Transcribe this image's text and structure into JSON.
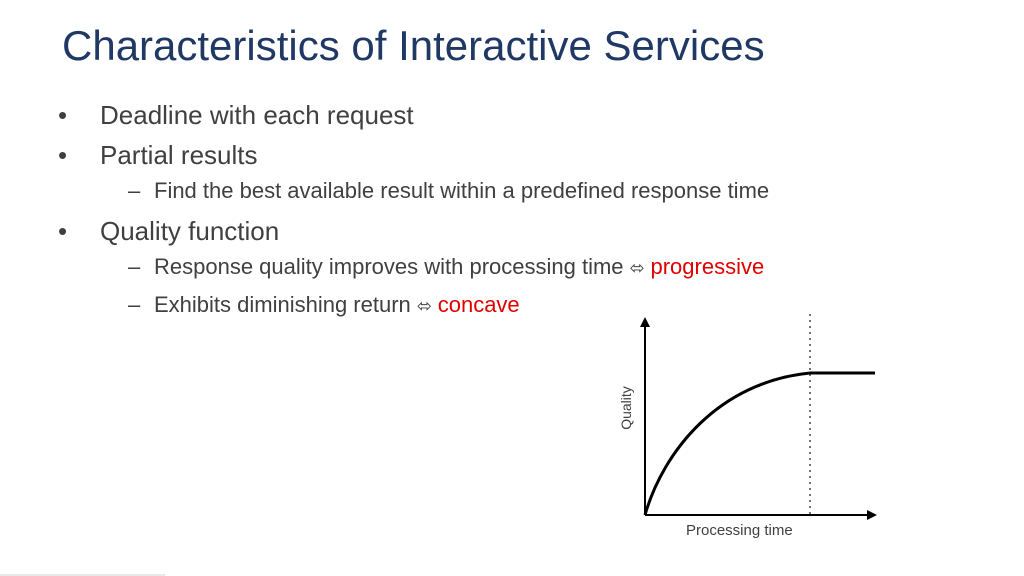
{
  "slide": {
    "title": "Characteristics of Interactive Services",
    "bullets": [
      {
        "level": 1,
        "marker": "•",
        "text": "Deadline with each request"
      },
      {
        "level": 1,
        "marker": "•",
        "text": "Partial results"
      },
      {
        "level": 2,
        "marker": "–",
        "text": "Find the best available result within a predefined response time"
      },
      {
        "level": 1,
        "marker": "•",
        "text": "Quality function"
      },
      {
        "level": 2,
        "marker": "–",
        "text": "Response quality improves with processing time",
        "arrow": "⬄",
        "highlight": "progressive"
      },
      {
        "level": 2,
        "marker": "–",
        "text": "Exhibits diminishing return",
        "arrow": "⬄",
        "highlight": "concave"
      }
    ],
    "highlight_color": "#e00000",
    "title_color": "#1f3864"
  },
  "chart": {
    "ylabel": "Quality",
    "xlabel": "Processing time",
    "curve": "concave rise to plateau",
    "deadline_marker": "dotted vertical line"
  }
}
